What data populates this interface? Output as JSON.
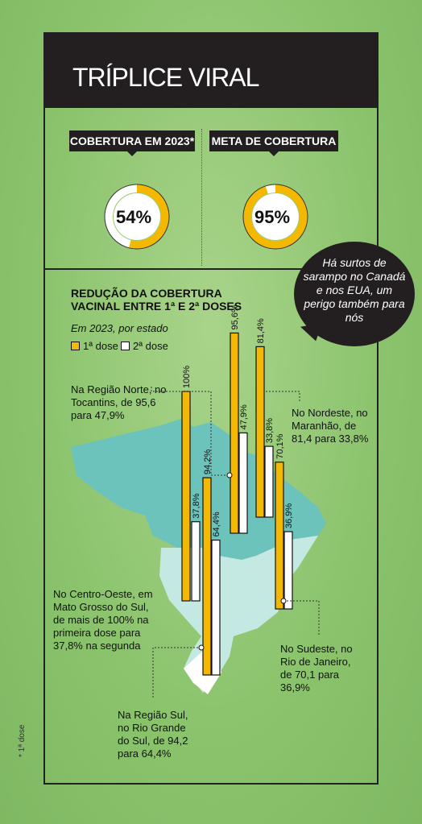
{
  "header": {
    "title": "TRÍPLICE VIRAL"
  },
  "stats": [
    {
      "label": "COBERTURA EM 2023*",
      "value": "54%",
      "fraction": 0.54
    },
    {
      "label": "META DE COBERTURA",
      "value": "95%",
      "fraction": 0.95
    }
  ],
  "callout": "Há surtos de sarampo no Canadá e nos EUA, um perigo também para nós",
  "chart_data": {
    "type": "bar",
    "title": "REDUÇÃO DA COBERTURA VACINAL ENTRE 1ª E 2ª DOSES",
    "subtitle": "Em 2023, por estado",
    "legend": [
      "1ª dose",
      "2ª dose"
    ],
    "series": [
      {
        "name": "1ª dose",
        "values": [
          100,
          94.2,
          95.6,
          81.4,
          70.1
        ],
        "labels": [
          "100%",
          "94,2%",
          "95,6%",
          "81,4%",
          "70,1%"
        ]
      },
      {
        "name": "2ª dose",
        "values": [
          37.8,
          64.4,
          47.9,
          33.8,
          36.9
        ],
        "labels": [
          "37,8%",
          "64,4%",
          "47,9%",
          "33,8%",
          "36,9%"
        ]
      }
    ],
    "colors": {
      "first": "#f5b800",
      "second": "#ffffff",
      "map_main": "#6cc3bc",
      "map_light": "#c4e8e2"
    }
  },
  "annotations": {
    "norte": "Na Região Norte, no Tocantins, de 95,6 para 47,9%",
    "nordeste": "No Nordeste, no Maranhão, de 81,4 para 33,8%",
    "centro_oeste": "No Centro-Oeste, em Mato Grosso do Sul, de mais de 100% na primeira dose para 37,8% na segunda",
    "sudeste": "No Sudeste, no Rio de Janeiro, de 70,1 para 36,9%",
    "sul": "Na Região Sul, no Rio Grande do Sul, de 94,2 para 64,4%"
  },
  "footnote": "* 1ª dose"
}
